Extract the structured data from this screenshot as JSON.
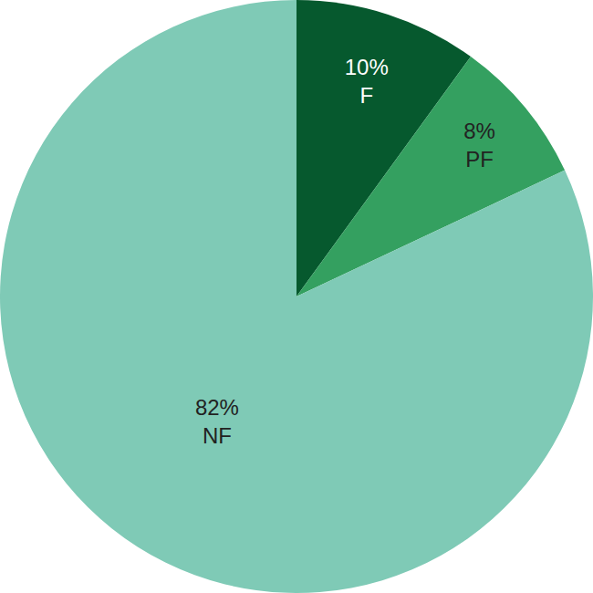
{
  "chart_data": {
    "type": "pie",
    "categories": [
      "F",
      "PF",
      "NF"
    ],
    "values": [
      10,
      8,
      82
    ],
    "value_labels": [
      "10%",
      "8%",
      "82%"
    ],
    "data_labels": true,
    "colors": [
      "#06592e",
      "#34a060",
      "#7fcab6"
    ]
  }
}
